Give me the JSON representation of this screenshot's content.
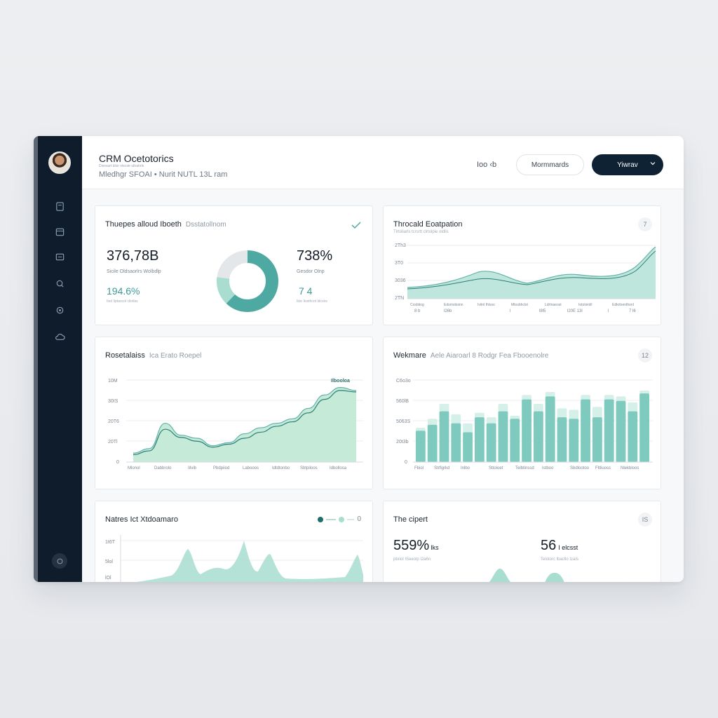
{
  "header": {
    "title": "CRM Ocetotorics",
    "description": "Dixesurt blizr nlecstr ultrahrls",
    "meta": "Mledhgr SFOAI  •  Nurit  NUTL 13L ram",
    "range": "Ioo ‹b",
    "outline_button": "Mormmards",
    "primary_button": "Yiwrav"
  },
  "sidebar": {
    "items": [
      "document-icon",
      "calendar-icon",
      "inbox-icon",
      "search-icon",
      "settings-icon",
      "cloud-icon"
    ],
    "bottom": "help-icon"
  },
  "colors": {
    "accent": "#4fa9a3",
    "accent_light": "#a8ddd0",
    "sidebar": "#0e1c2b",
    "primary": "#0f2233"
  },
  "card1": {
    "title": "Thuepes alloud Iboeth",
    "subtitle": "Dsstatollnom",
    "value1": "376,78B",
    "label1": "Sicile Oldsaorlrs Wolbdlp",
    "value2": "194.6%",
    "note2": "Itsd Iiptaocol cliotlas",
    "value3": "738%",
    "label3": "Gesdor Olnp",
    "value4": "7 4",
    "note4": "Ikte Iiosthcnt ldcoirs",
    "donut": {
      "segments": [
        0.62,
        0.15,
        0.23
      ]
    }
  },
  "card2": {
    "title": "Throcald Eoatpation",
    "subtitle": "Tlrtoliarls tcrsrtt clrtolpie oldlis",
    "badge": "7",
    "y_ticks": [
      "2Th3",
      "3T0",
      "3036",
      "2TN"
    ],
    "x_ticks": [
      "Cosbtiog",
      "Edsrnstioinn",
      "Ivitnl Ihlsso",
      "Mtosbhclst",
      "Ldrtnaeost",
      "Iotoloinlil",
      "Edkrtnenthonl"
    ],
    "x_ticks2": [
      "8 b",
      "l26b",
      "l",
      "l8l5",
      "l20E 13l",
      "l",
      "7 l6"
    ]
  },
  "card3": {
    "title": "Rosetalaiss",
    "subtitle": "Ica Erato Roepel",
    "peak_label": "Ilbooloa",
    "y_ticks": [
      "10M",
      "30IS",
      "20T6",
      "20Tl",
      "0"
    ],
    "x_ticks": [
      "Mlonol",
      "Dabbrolo",
      "Iilvib",
      "Pbdpiiod",
      "Labooos",
      "Idtdtonbo",
      "Sbtpiloos",
      "Idbollosa"
    ],
    "chart_data": {
      "type": "area",
      "x": [
        0,
        1,
        2,
        3,
        4,
        5,
        6,
        7,
        8,
        9,
        10,
        11,
        12,
        13,
        14
      ],
      "series": [
        {
          "values": [
            12,
            18,
            52,
            36,
            32,
            22,
            26,
            38,
            46,
            52,
            58,
            72,
            90,
            100,
            96
          ]
        },
        {
          "values": [
            10,
            15,
            44,
            33,
            28,
            20,
            24,
            32,
            40,
            48,
            54,
            66,
            84,
            96,
            94
          ]
        }
      ],
      "ylim": [
        0,
        110
      ]
    }
  },
  "card4": {
    "title": "Wekmare",
    "subtitle": "Aele Aiaroarl 8 Rodgr Fea Fbooenolre",
    "badge": "12",
    "y_ticks": [
      "C6o3o",
      "560lB",
      "5063S",
      "20t3b",
      "0"
    ],
    "x_ticks": [
      "Fbiol",
      "Strfigrkd",
      "Inlbo",
      "Sttoioet",
      "Telbtinssd",
      "Istboo",
      "Sbdlootoo",
      "Fltliuoss",
      "Nlekbloos"
    ],
    "chart_data": {
      "type": "bar",
      "categories": [
        "1",
        "2",
        "3",
        "4",
        "5",
        "6",
        "7",
        "8",
        "9",
        "10",
        "11",
        "12",
        "13",
        "14",
        "15",
        "16",
        "17",
        "18",
        "19",
        "20"
      ],
      "series": [
        {
          "values": [
            42,
            50,
            68,
            52,
            40,
            60,
            52,
            68,
            58,
            84,
            68,
            88,
            60,
            58,
            84,
            60,
            84,
            82,
            68,
            92
          ]
        },
        {
          "values": [
            46,
            58,
            78,
            64,
            52,
            66,
            60,
            78,
            62,
            90,
            78,
            94,
            72,
            70,
            90,
            74,
            90,
            88,
            80,
            96
          ]
        }
      ],
      "ylim": [
        0,
        110
      ]
    }
  },
  "card5": {
    "title": "Natres Ict Xtdoamaro",
    "legend_value": "0",
    "y_ticks": [
      "1t6T",
      "5lol",
      "lOl"
    ]
  },
  "card6": {
    "title": "The cipert",
    "badge": "IS",
    "value1": "559%",
    "value1_suffix": "Iks",
    "label1": "pbriol ISeeolp l2a6n",
    "value2": "56",
    "value2_suffix": "I elcsst",
    "label2": "Telotorc lbacllo IzaIs"
  }
}
